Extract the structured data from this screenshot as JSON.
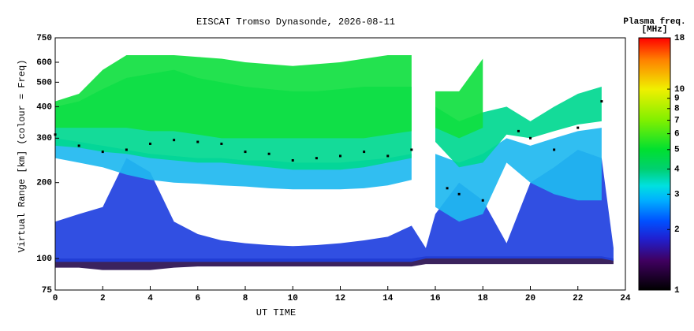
{
  "chart_data": {
    "type": "range-time",
    "title": "EISCAT Tromso Dynasonde, 2026-08-11",
    "xlabel": "UT TIME",
    "ylabel": "Virtual Range [km] (colour = Freq)",
    "colorbar_title": [
      "Plasma freq.",
      "[MHz]"
    ],
    "xlim": [
      0,
      24
    ],
    "xticks": [
      0,
      2,
      4,
      6,
      8,
      10,
      12,
      14,
      16,
      18,
      20,
      22,
      24
    ],
    "ylim": [
      75,
      750
    ],
    "yticks": [
      75,
      100,
      200,
      300,
      400,
      500,
      600,
      750
    ],
    "ylog": true,
    "clim": [
      1,
      18
    ],
    "cticks": [
      1,
      2,
      3,
      4,
      5,
      6,
      7,
      8,
      9,
      10,
      18
    ],
    "clog": true,
    "colormap": [
      {
        "value": 1,
        "color": "#000000"
      },
      {
        "value": 1.4,
        "color": "#400060"
      },
      {
        "value": 1.8,
        "color": "#2020d0"
      },
      {
        "value": 2.2,
        "color": "#0050ff"
      },
      {
        "value": 2.8,
        "color": "#00b0ff"
      },
      {
        "value": 3.3,
        "color": "#00e0e0"
      },
      {
        "value": 4,
        "color": "#00d070"
      },
      {
        "value": 5,
        "color": "#00e030"
      },
      {
        "value": 7,
        "color": "#80f000"
      },
      {
        "value": 10,
        "color": "#f0f000"
      },
      {
        "value": 14,
        "color": "#ff8000"
      },
      {
        "value": 18,
        "color": "#ff0000"
      }
    ],
    "x": [
      0,
      1,
      2,
      3,
      4,
      5,
      6,
      7,
      8,
      9,
      10,
      11,
      12,
      13,
      14,
      15,
      15.6,
      16,
      17,
      18,
      19,
      20,
      21,
      22,
      23,
      23.5
    ],
    "layers": [
      {
        "color": "#2a1050",
        "lower": [
          92,
          92,
          90,
          90,
          90,
          92,
          93,
          93,
          93,
          93,
          93,
          93,
          93,
          93,
          93,
          93,
          95,
          95,
          95,
          95,
          95,
          95,
          95,
          95,
          95,
          95
        ],
        "upper": [
          100,
          100,
          100,
          100,
          100,
          100,
          100,
          100,
          100,
          100,
          100,
          100,
          100,
          100,
          100,
          100,
          102,
          102,
          102,
          102,
          102,
          102,
          102,
          102,
          102,
          100
        ]
      },
      {
        "color": "#2040e0",
        "lower": [
          97,
          97,
          97,
          97,
          97,
          97,
          97,
          97,
          97,
          97,
          97,
          97,
          97,
          97,
          97,
          97,
          100,
          100,
          100,
          100,
          100,
          100,
          100,
          100,
          100,
          98
        ],
        "upper": [
          140,
          150,
          160,
          250,
          220,
          140,
          125,
          118,
          115,
          113,
          112,
          113,
          115,
          118,
          122,
          135,
          110,
          150,
          200,
          170,
          115,
          200,
          230,
          270,
          250,
          110
        ]
      },
      {
        "color": "#20b8f0",
        "lower": [
          250,
          240,
          230,
          215,
          205,
          200,
          198,
          195,
          193,
          190,
          188,
          188,
          188,
          190,
          195,
          205,
          null,
          160,
          140,
          150,
          240,
          200,
          180,
          170,
          170,
          null
        ],
        "upper": [
          300,
          290,
          280,
          270,
          260,
          255,
          250,
          250,
          245,
          245,
          240,
          240,
          240,
          245,
          250,
          260,
          null,
          260,
          240,
          260,
          300,
          280,
          300,
          320,
          330,
          null
        ]
      },
      {
        "color": "#00d890",
        "lower": [
          280,
          275,
          265,
          260,
          250,
          245,
          240,
          240,
          235,
          230,
          225,
          225,
          225,
          230,
          240,
          250,
          null,
          290,
          230,
          240,
          310,
          300,
          320,
          340,
          350,
          null
        ],
        "upper": [
          400,
          420,
          470,
          520,
          540,
          560,
          520,
          500,
          480,
          470,
          460,
          460,
          470,
          480,
          480,
          480,
          null,
          400,
          350,
          380,
          400,
          350,
          400,
          450,
          480,
          null
        ]
      },
      {
        "color": "#10e040",
        "lower": [
          330,
          330,
          330,
          330,
          320,
          320,
          310,
          300,
          300,
          300,
          300,
          300,
          300,
          300,
          310,
          320,
          null,
          330,
          300,
          330,
          null,
          null,
          null,
          null,
          null,
          null
        ],
        "upper": [
          420,
          450,
          560,
          640,
          640,
          640,
          630,
          620,
          600,
          590,
          580,
          590,
          600,
          620,
          640,
          640,
          null,
          460,
          460,
          620,
          null,
          null,
          null,
          null,
          null,
          null
        ]
      }
    ],
    "trace": {
      "color": "#000000",
      "x": [
        0,
        1,
        2,
        3,
        4,
        5,
        6,
        7,
        8,
        9,
        10,
        11,
        12,
        13,
        14,
        15,
        16.5,
        17,
        18,
        19.5,
        20,
        21,
        22,
        23
      ],
      "y": [
        310,
        280,
        265,
        270,
        285,
        295,
        290,
        285,
        265,
        260,
        245,
        250,
        255,
        265,
        255,
        270,
        190,
        180,
        170,
        320,
        300,
        270,
        330,
        420
      ]
    }
  }
}
